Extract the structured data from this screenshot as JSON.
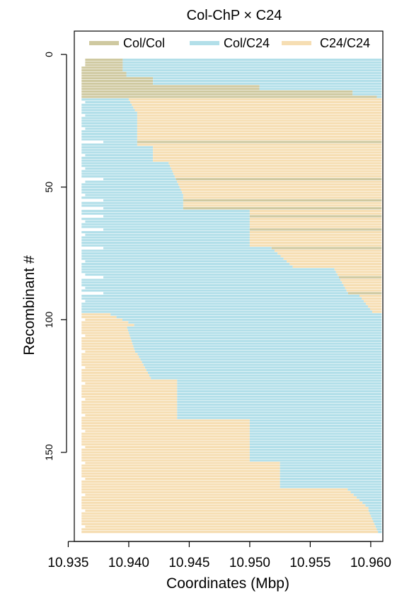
{
  "chart_data": {
    "type": "bar",
    "title": "Col-ChP × C24",
    "xlabel": "Coordinates (Mbp)",
    "ylabel": "Recombinant #",
    "xlim": [
      10.9355,
      10.961
    ],
    "ylim": [
      182,
      -2
    ],
    "xticks": [
      10.935,
      10.94,
      10.945,
      10.95,
      10.955,
      10.96
    ],
    "xtick_labels": [
      "10.935",
      "10.940",
      "10.945",
      "10.950",
      "10.955",
      "10.960"
    ],
    "yticks": [
      0,
      50,
      100,
      150
    ],
    "ytick_labels": [
      "0",
      "50",
      "100",
      "150"
    ],
    "legend": {
      "position": "top",
      "entries": [
        {
          "label": "Col/Col",
          "color": "#cfc9a0"
        },
        {
          "label": "Col/C24",
          "color": "#b2dfe9"
        },
        {
          "label": "C24/C24",
          "color": "#f6deb3"
        }
      ]
    },
    "colors": {
      "ColCol": "#cfc9a0",
      "ColC24": "#b2dfe9",
      "C24C24": "#f6deb3"
    },
    "marker_start": 10.9361,
    "marker_end": 10.9609,
    "recombinants": {
      "group1_col_col_to_col_c24": [
        {
          "from": 2,
          "to": 12,
          "breakpoints": [
            10.9395,
            10.9395,
            10.9395,
            10.9395,
            10.9395,
            10.9398,
            10.9398,
            10.942,
            10.942,
            10.942,
            10.9508
          ]
        }
      ],
      "group2_col_c24_to_c24_c24": [
        {
          "from": 16,
          "to": 98,
          "breakpoint_start": 10.9398,
          "breakpoint_end": 10.9601
        }
      ],
      "group3_c24_c24_to_col_c24": [
        {
          "from": 98,
          "to": 180,
          "breakpoint_start": 10.938,
          "breakpoint_end": 10.9605
        }
      ]
    },
    "series_by_genotype": [
      {
        "name": "Col/Col",
        "segments": "recombinants 1-16 left segment; sporadic full-width lines in group 2"
      },
      {
        "name": "Col/C24",
        "segments": "right segment group 1; left segment group 2; right segment group 3"
      },
      {
        "name": "C24/C24",
        "segments": "right segment group 2; left segment group 3"
      }
    ]
  }
}
